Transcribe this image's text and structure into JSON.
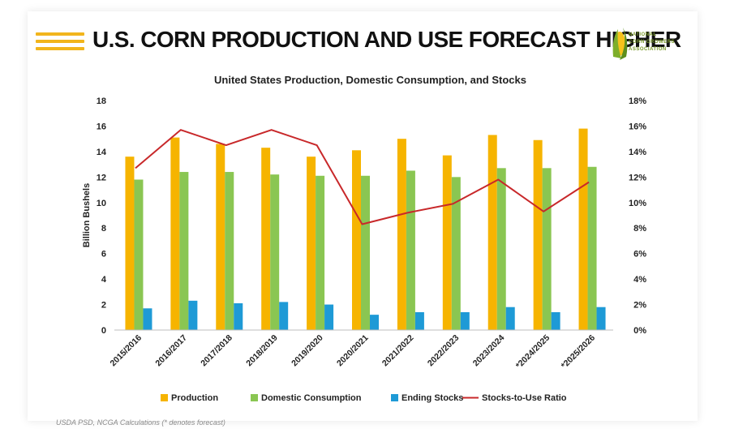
{
  "header": {
    "title": "U.S. CORN PRODUCTION AND USE FORECAST HIGHER",
    "logo_lines": [
      "NATIONAL",
      "CORN GROWERS",
      "ASSOCIATION"
    ]
  },
  "footer": {
    "source": "USDA PSD, NCGA Calculations (* denotes forecast)"
  },
  "colors": {
    "production": "#f6b400",
    "domestic_consumption": "#8ac652",
    "ending_stocks": "#1e9ad6",
    "ratio": "#c8282a",
    "stripes": "#f2b51c"
  },
  "chart_data": {
    "type": "bar",
    "title": "United States Production, Domestic Consumption, and Stocks",
    "ylabel": "Billion Bushels",
    "ylim": [
      0,
      18
    ],
    "yticks": [
      "0",
      "2",
      "4",
      "6",
      "8",
      "10",
      "12",
      "14",
      "16",
      "18"
    ],
    "y2lim": [
      0,
      18
    ],
    "y2ticks": [
      "0%",
      "2%",
      "4%",
      "6%",
      "8%",
      "10%",
      "12%",
      "14%",
      "16%",
      "18%"
    ],
    "legend_position": "bottom",
    "categories": [
      "2015/2016",
      "2016/2017",
      "2017/2018",
      "2018/2019",
      "2019/2020",
      "2020/2021",
      "2021/2022",
      "2022/2023",
      "2023/2024",
      "*2024/2025",
      "*2025/2026"
    ],
    "series": [
      {
        "name": "Production",
        "kind": "bar",
        "values": [
          13.6,
          15.1,
          14.6,
          14.3,
          13.6,
          14.1,
          15.0,
          13.7,
          15.3,
          14.9,
          15.8
        ]
      },
      {
        "name": "Domestic Consumption",
        "kind": "bar",
        "values": [
          11.8,
          12.4,
          12.4,
          12.2,
          12.1,
          12.1,
          12.5,
          12.0,
          12.7,
          12.7,
          12.8
        ]
      },
      {
        "name": "Ending Stocks",
        "kind": "bar",
        "values": [
          1.7,
          2.3,
          2.1,
          2.2,
          2.0,
          1.2,
          1.4,
          1.4,
          1.8,
          1.4,
          1.8
        ]
      },
      {
        "name": "Stocks-to-Use Ratio",
        "kind": "line",
        "axis": "right",
        "values": [
          12.7,
          15.7,
          14.5,
          15.7,
          14.5,
          8.3,
          9.2,
          9.9,
          11.8,
          9.3,
          11.6
        ]
      }
    ]
  }
}
